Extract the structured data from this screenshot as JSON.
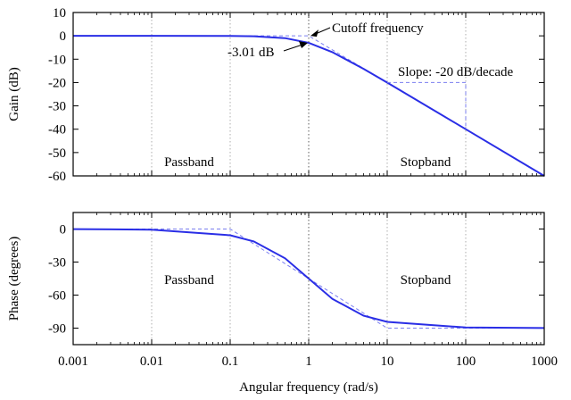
{
  "chart_data": [
    {
      "type": "line",
      "xlabel": "",
      "ylabel": "Gain (dB)",
      "xscale": "log",
      "xlim": [
        0.001,
        1000
      ],
      "ylim": [
        -60,
        10
      ],
      "x_ticks": [
        0.001,
        0.01,
        0.1,
        1,
        10,
        100,
        1000
      ],
      "y_ticks": [
        10,
        0,
        -10,
        -20,
        -30,
        -40,
        -50,
        -60
      ],
      "y_tick_labels": [
        "10",
        "0",
        "-10",
        "-20",
        "-30",
        "-40",
        "-50",
        "-60"
      ],
      "grid": "vertical dotted",
      "series": [
        {
          "style": "solid",
          "color": "#2a2ee6",
          "x": [
            0.001,
            0.01,
            0.1,
            0.2,
            0.5,
            1,
            2,
            5,
            10,
            100,
            1000
          ],
          "y": [
            0,
            0,
            -0.04,
            -0.17,
            -0.97,
            -3.01,
            -6.99,
            -14.15,
            -20.04,
            -40,
            -60
          ]
        },
        {
          "style": "dashed",
          "color": "#7b7ff0",
          "x": [
            0.001,
            1,
            1000
          ],
          "y": [
            0,
            0,
            -60
          ]
        }
      ],
      "slope_triangle": {
        "x": [
          10,
          100,
          100
        ],
        "y": [
          -20,
          -20,
          -40
        ],
        "style": "dashed"
      },
      "annotations": {
        "cutoff": "Cutoff frequency",
        "db3": "-3.01 dB",
        "slope": "Slope: -20 dB/decade",
        "passband": "Passband",
        "stopband": "Stopband"
      }
    },
    {
      "type": "line",
      "xlabel": "Angular frequency (rad/s)",
      "ylabel": "Phase (degrees)",
      "xscale": "log",
      "xlim": [
        0.001,
        1000
      ],
      "ylim": [
        -105,
        15
      ],
      "x_ticks": [
        0.001,
        0.01,
        0.1,
        1,
        10,
        100,
        1000
      ],
      "x_tick_labels": [
        "0.001",
        "0.01",
        "0.1",
        "1",
        "10",
        "100",
        "1000"
      ],
      "y_ticks": [
        0,
        -30,
        -60,
        -90
      ],
      "y_tick_labels": [
        "0",
        "-30",
        "-60",
        "-90"
      ],
      "grid": "vertical dotted",
      "series": [
        {
          "style": "solid",
          "color": "#2a2ee6",
          "x": [
            0.001,
            0.01,
            0.1,
            0.2,
            0.5,
            1,
            2,
            5,
            10,
            100,
            1000
          ],
          "y": [
            -0.06,
            -0.57,
            -5.71,
            -11.3,
            -26.6,
            -45,
            -63.4,
            -78.7,
            -84.3,
            -89.4,
            -89.9
          ]
        },
        {
          "style": "dashed",
          "color": "#7b7ff0",
          "x": [
            0.001,
            0.1,
            10,
            1000
          ],
          "y": [
            0,
            0,
            -90,
            -90
          ]
        }
      ],
      "annotations": {
        "passband": "Passband",
        "stopband": "Stopband"
      }
    }
  ]
}
